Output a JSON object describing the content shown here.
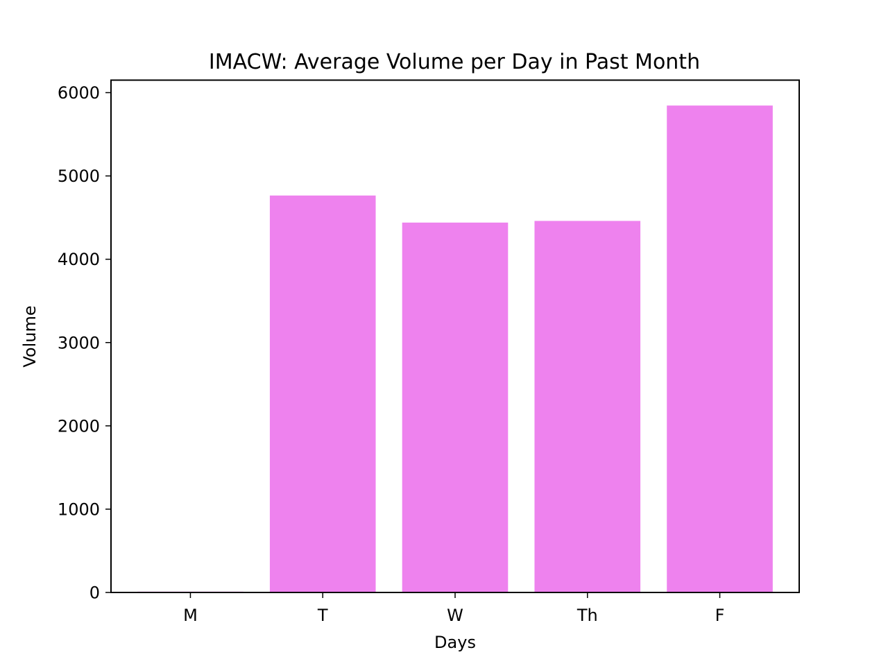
{
  "chart_data": {
    "type": "bar",
    "title": "IMACW: Average Volume per Day in Past Month",
    "xlabel": "Days",
    "ylabel": "Volume",
    "categories": [
      "M",
      "T",
      "W",
      "Th",
      "F"
    ],
    "values": [
      10,
      4765,
      4440,
      4460,
      5845
    ],
    "ylim": [
      0,
      6150
    ],
    "yticks": [
      0,
      1000,
      2000,
      3000,
      4000,
      5000,
      6000
    ],
    "grid": false,
    "legend": "none",
    "bar_color": "#ee82ee"
  }
}
